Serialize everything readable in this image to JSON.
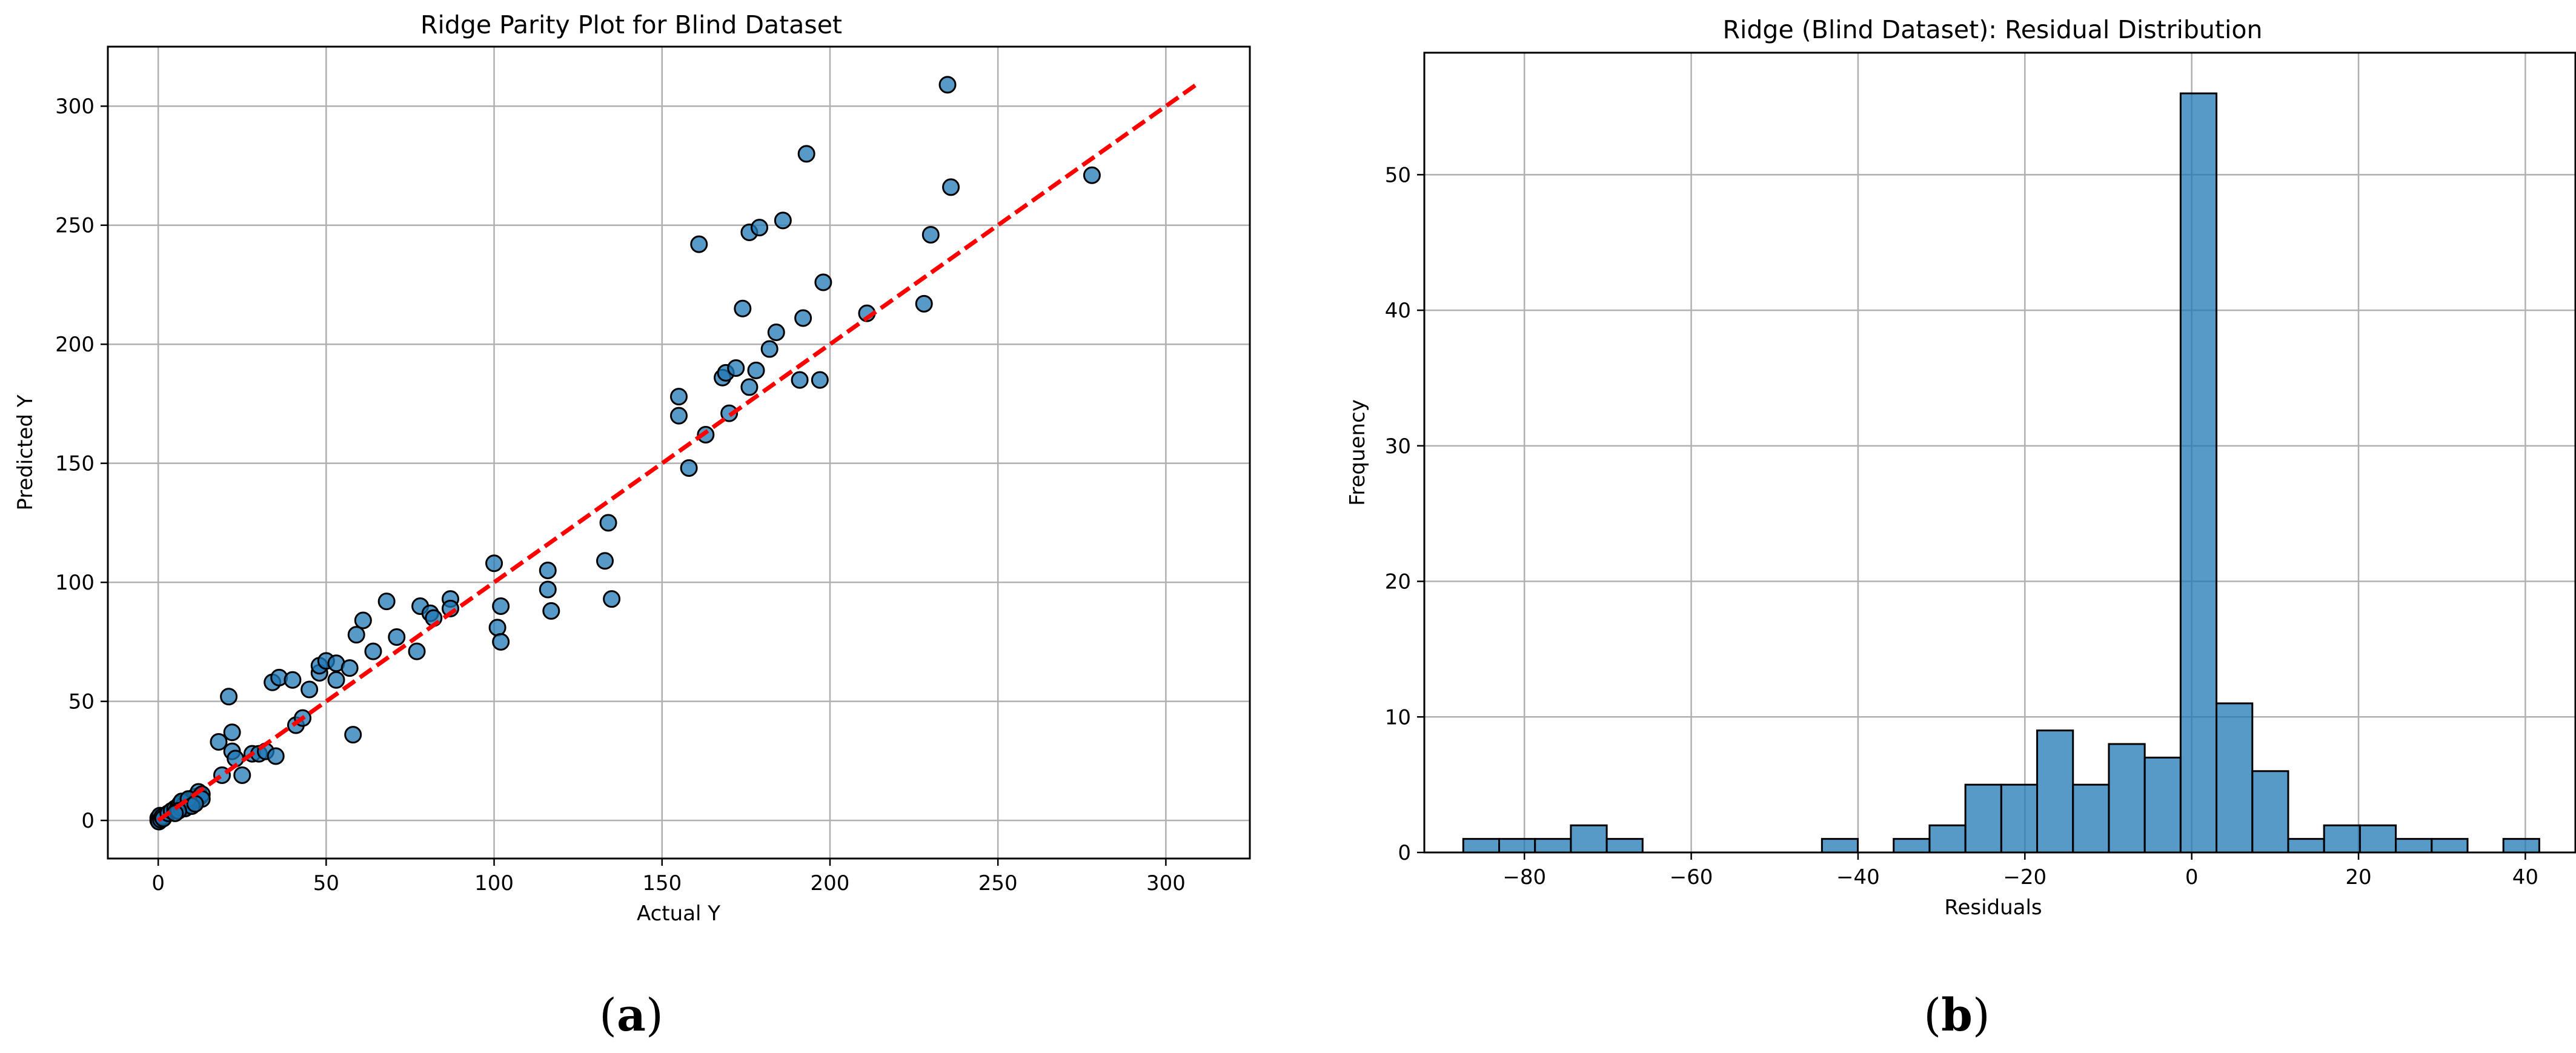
{
  "chart_data": [
    {
      "type": "scatter",
      "title": "Ridge Parity Plot for Blind Dataset",
      "xlabel": "Actual Y",
      "ylabel": "Predicted Y",
      "xlim": [
        -15,
        325
      ],
      "ylim": [
        -16,
        325
      ],
      "xticks": [
        0,
        50,
        100,
        150,
        200,
        250,
        300
      ],
      "yticks": [
        0,
        50,
        100,
        150,
        200,
        250,
        300
      ],
      "grid": true,
      "point_color": "#1f77b4",
      "edge_color": "#000000",
      "reference_line": {
        "x": [
          0,
          309
        ],
        "y": [
          0,
          309
        ],
        "color": "#ff0000",
        "style": "dashed"
      },
      "points": [
        [
          0,
          0
        ],
        [
          0,
          1
        ],
        [
          0.5,
          2
        ],
        [
          1,
          1
        ],
        [
          0.2,
          -0.5
        ],
        [
          0.8,
          0.3
        ],
        [
          1.2,
          1.5
        ],
        [
          1.5,
          0.8
        ],
        [
          3,
          3
        ],
        [
          4,
          4
        ],
        [
          5,
          5
        ],
        [
          5.5,
          4
        ],
        [
          6,
          6
        ],
        [
          6.5,
          7
        ],
        [
          7,
          5
        ],
        [
          7.5,
          6
        ],
        [
          8,
          7
        ],
        [
          8.5,
          6
        ],
        [
          9,
          8
        ],
        [
          9.5,
          7
        ],
        [
          10,
          9
        ],
        [
          10.5,
          8
        ],
        [
          11,
          10
        ],
        [
          11.5,
          9
        ],
        [
          12,
          12
        ],
        [
          12.5,
          10
        ],
        [
          13,
          11
        ],
        [
          13,
          9
        ],
        [
          7,
          8
        ],
        [
          8,
          5
        ],
        [
          9,
          9
        ],
        [
          10,
          6
        ],
        [
          11,
          7
        ],
        [
          6,
          4
        ],
        [
          5,
          3
        ],
        [
          18,
          33
        ],
        [
          19,
          19
        ],
        [
          21,
          52
        ],
        [
          22,
          37
        ],
        [
          22,
          29
        ],
        [
          23,
          26
        ],
        [
          25,
          19
        ],
        [
          28,
          28
        ],
        [
          30,
          28
        ],
        [
          32,
          29
        ],
        [
          34,
          58
        ],
        [
          35,
          27
        ],
        [
          36,
          60
        ],
        [
          40,
          59
        ],
        [
          41,
          40
        ],
        [
          43,
          43
        ],
        [
          45,
          55
        ],
        [
          48,
          62
        ],
        [
          48,
          65
        ],
        [
          50,
          67
        ],
        [
          53,
          59
        ],
        [
          53,
          66
        ],
        [
          57,
          64
        ],
        [
          58,
          36
        ],
        [
          59,
          78
        ],
        [
          61,
          84
        ],
        [
          64,
          71
        ],
        [
          68,
          92
        ],
        [
          71,
          77
        ],
        [
          77,
          71
        ],
        [
          78,
          90
        ],
        [
          81,
          87
        ],
        [
          82,
          85
        ],
        [
          87,
          93
        ],
        [
          87,
          89
        ],
        [
          100,
          108
        ],
        [
          101,
          81
        ],
        [
          102,
          90
        ],
        [
          102,
          75
        ],
        [
          116,
          105
        ],
        [
          116,
          97
        ],
        [
          117,
          88
        ],
        [
          133,
          109
        ],
        [
          134,
          125
        ],
        [
          135,
          93
        ],
        [
          155,
          178
        ],
        [
          155,
          170
        ],
        [
          158,
          148
        ],
        [
          161,
          242
        ],
        [
          163,
          162
        ],
        [
          168,
          186
        ],
        [
          169,
          188
        ],
        [
          170,
          171
        ],
        [
          172,
          190
        ],
        [
          174,
          215
        ],
        [
          176,
          182
        ],
        [
          176,
          247
        ],
        [
          178,
          189
        ],
        [
          179,
          249
        ],
        [
          182,
          198
        ],
        [
          184,
          205
        ],
        [
          186,
          252
        ],
        [
          191,
          185
        ],
        [
          192,
          211
        ],
        [
          193,
          280
        ],
        [
          197,
          185
        ],
        [
          198,
          226
        ],
        [
          211,
          213
        ],
        [
          228,
          217
        ],
        [
          230,
          246
        ],
        [
          235,
          309
        ],
        [
          236,
          266
        ],
        [
          278,
          271
        ]
      ]
    },
    {
      "type": "bar",
      "title": "Ridge (Blind Dataset): Residual Distribution",
      "xlabel": "Residuals",
      "ylabel": "Frequency",
      "xlim": [
        -92,
        46
      ],
      "ylim": [
        0,
        59
      ],
      "xticks": [
        -80,
        -60,
        -40,
        -20,
        0,
        20,
        40
      ],
      "yticks": [
        0,
        10,
        20,
        30,
        40,
        50
      ],
      "grid": true,
      "bar_color": "#1f77b4",
      "edge_color": "#000000",
      "bin_start": -87.33,
      "bin_width": 4.3,
      "counts": [
        1,
        1,
        1,
        2,
        1,
        0,
        0,
        0,
        0,
        0,
        1,
        0,
        1,
        2,
        5,
        5,
        9,
        5,
        8,
        7,
        56,
        11,
        6,
        1,
        2,
        2,
        1,
        1,
        0,
        1
      ]
    }
  ],
  "captions": [
    {
      "open": "(",
      "letter": "a",
      "close": ")"
    },
    {
      "open": "(",
      "letter": "b",
      "close": ")"
    }
  ]
}
